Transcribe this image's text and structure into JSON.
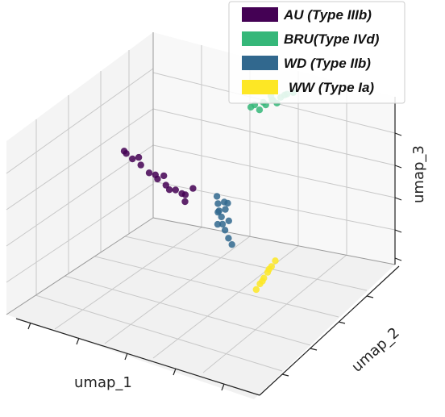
{
  "chart_data": {
    "type": "scatter",
    "title": "",
    "xlabel": "umap_1",
    "ylabel": "umap_2",
    "zlabel": "umap_3",
    "grid": true,
    "legend_position": "top-right",
    "legend": [
      {
        "label": "AU (Type IIIb)",
        "color": "#440154"
      },
      {
        "label": "BRU(Type IVd)",
        "color": "#35b779"
      },
      {
        "label": "WD (Type IIb)",
        "color": "#31688e"
      },
      {
        "label": "WW (Type Ia)",
        "color": "#fde725"
      }
    ],
    "series": [
      {
        "name": "AU (Type IIIb)",
        "color": "#440154",
        "points": [
          [
            0.1,
            0.6,
            0.55
          ],
          [
            0.14,
            0.59,
            0.53
          ],
          [
            0.18,
            0.58,
            0.52
          ],
          [
            0.22,
            0.57,
            0.5
          ],
          [
            0.26,
            0.56,
            0.49
          ],
          [
            0.3,
            0.55,
            0.48
          ],
          [
            0.34,
            0.55,
            0.47
          ],
          [
            0.38,
            0.55,
            0.46
          ],
          [
            0.4,
            0.57,
            0.49
          ],
          [
            0.39,
            0.53,
            0.44
          ],
          [
            0.36,
            0.56,
            0.45
          ],
          [
            0.32,
            0.54,
            0.47
          ],
          [
            0.28,
            0.57,
            0.51
          ],
          [
            0.24,
            0.58,
            0.49
          ],
          [
            0.16,
            0.6,
            0.54
          ],
          [
            0.12,
            0.58,
            0.56
          ]
        ]
      },
      {
        "name": "BRU(Type IVd)",
        "color": "#35b779",
        "points": [
          [
            0.55,
            0.75,
            0.9
          ],
          [
            0.58,
            0.76,
            0.92
          ],
          [
            0.61,
            0.77,
            0.94
          ],
          [
            0.64,
            0.78,
            0.96
          ],
          [
            0.66,
            0.79,
            0.98
          ],
          [
            0.68,
            0.8,
            0.99
          ],
          [
            0.63,
            0.77,
            0.93
          ],
          [
            0.6,
            0.78,
            0.95
          ],
          [
            0.57,
            0.75,
            0.88
          ],
          [
            0.54,
            0.74,
            0.89
          ],
          [
            0.59,
            0.76,
            0.91
          ],
          [
            0.65,
            0.79,
            0.97
          ],
          [
            0.62,
            0.76,
            0.95
          ]
        ]
      },
      {
        "name": "WD (Type IIb)",
        "color": "#31688e",
        "points": [
          [
            0.55,
            0.48,
            0.58
          ],
          [
            0.56,
            0.47,
            0.55
          ],
          [
            0.57,
            0.46,
            0.52
          ],
          [
            0.58,
            0.46,
            0.49
          ],
          [
            0.59,
            0.45,
            0.46
          ],
          [
            0.6,
            0.45,
            0.43
          ],
          [
            0.62,
            0.44,
            0.4
          ],
          [
            0.64,
            0.43,
            0.38
          ],
          [
            0.58,
            0.48,
            0.56
          ],
          [
            0.56,
            0.47,
            0.5
          ],
          [
            0.59,
            0.47,
            0.53
          ],
          [
            0.57,
            0.45,
            0.45
          ],
          [
            0.61,
            0.46,
            0.48
          ],
          [
            0.6,
            0.47,
            0.57
          ]
        ]
      },
      {
        "name": "WW (Type Ia)",
        "color": "#fde725",
        "points": [
          [
            0.9,
            0.15,
            0.45
          ],
          [
            0.91,
            0.16,
            0.48
          ],
          [
            0.92,
            0.17,
            0.51
          ],
          [
            0.93,
            0.18,
            0.54
          ],
          [
            0.94,
            0.19,
            0.57
          ],
          [
            0.95,
            0.2,
            0.6
          ],
          [
            0.92,
            0.16,
            0.5
          ],
          [
            0.93,
            0.19,
            0.55
          ]
        ]
      }
    ]
  }
}
